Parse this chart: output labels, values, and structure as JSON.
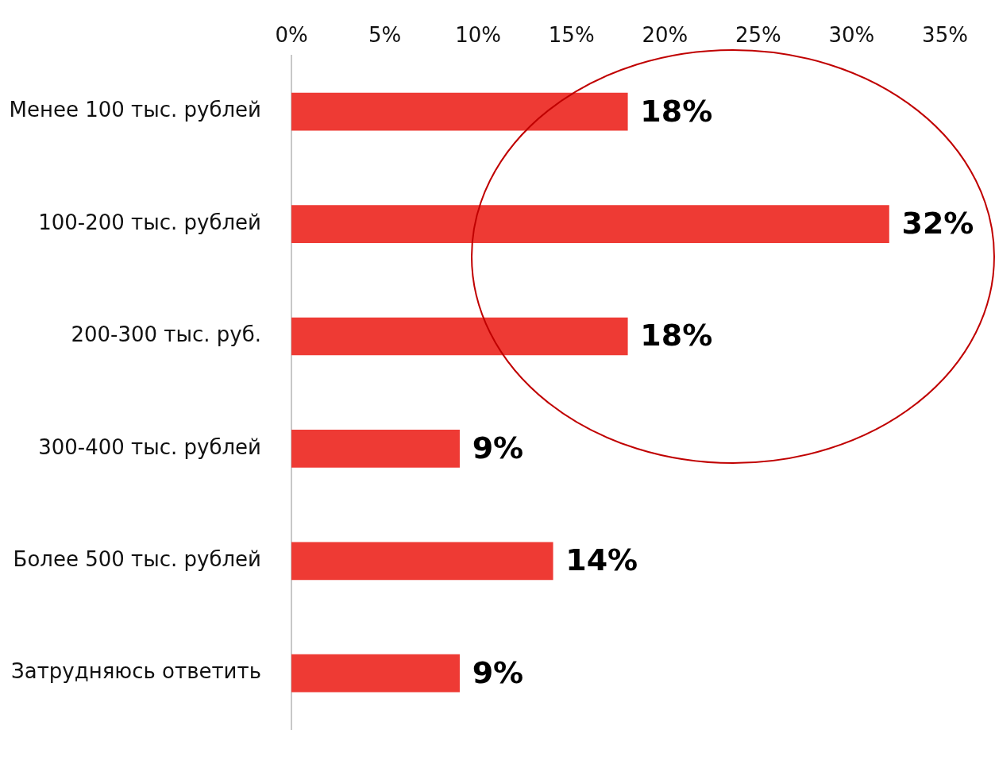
{
  "chart_data": {
    "type": "bar",
    "orientation": "horizontal",
    "categories": [
      "Менее 100 тыс. рублей",
      "100-200 тыс. рублей",
      "200-300 тыс. руб.",
      "300-400 тыс. рублей",
      "Более 500 тыс. рублей",
      "Затрудняюсь ответить"
    ],
    "values": [
      18,
      32,
      18,
      9,
      14,
      9
    ],
    "value_labels": [
      "18%",
      "32%",
      "18%",
      "9%",
      "14%",
      "9%"
    ],
    "color": "#ee3a34",
    "xlim": [
      0,
      35
    ],
    "xticks": [
      {
        "value": 0,
        "label": "0%"
      },
      {
        "value": 5,
        "label": "5%"
      },
      {
        "value": 10,
        "label": "10%"
      },
      {
        "value": 15,
        "label": "15%"
      },
      {
        "value": 20,
        "label": "20%"
      },
      {
        "value": 25,
        "label": "25%"
      },
      {
        "value": 30,
        "label": "30%"
      },
      {
        "value": 35,
        "label": "35%"
      }
    ],
    "grid": false,
    "legend": false
  }
}
